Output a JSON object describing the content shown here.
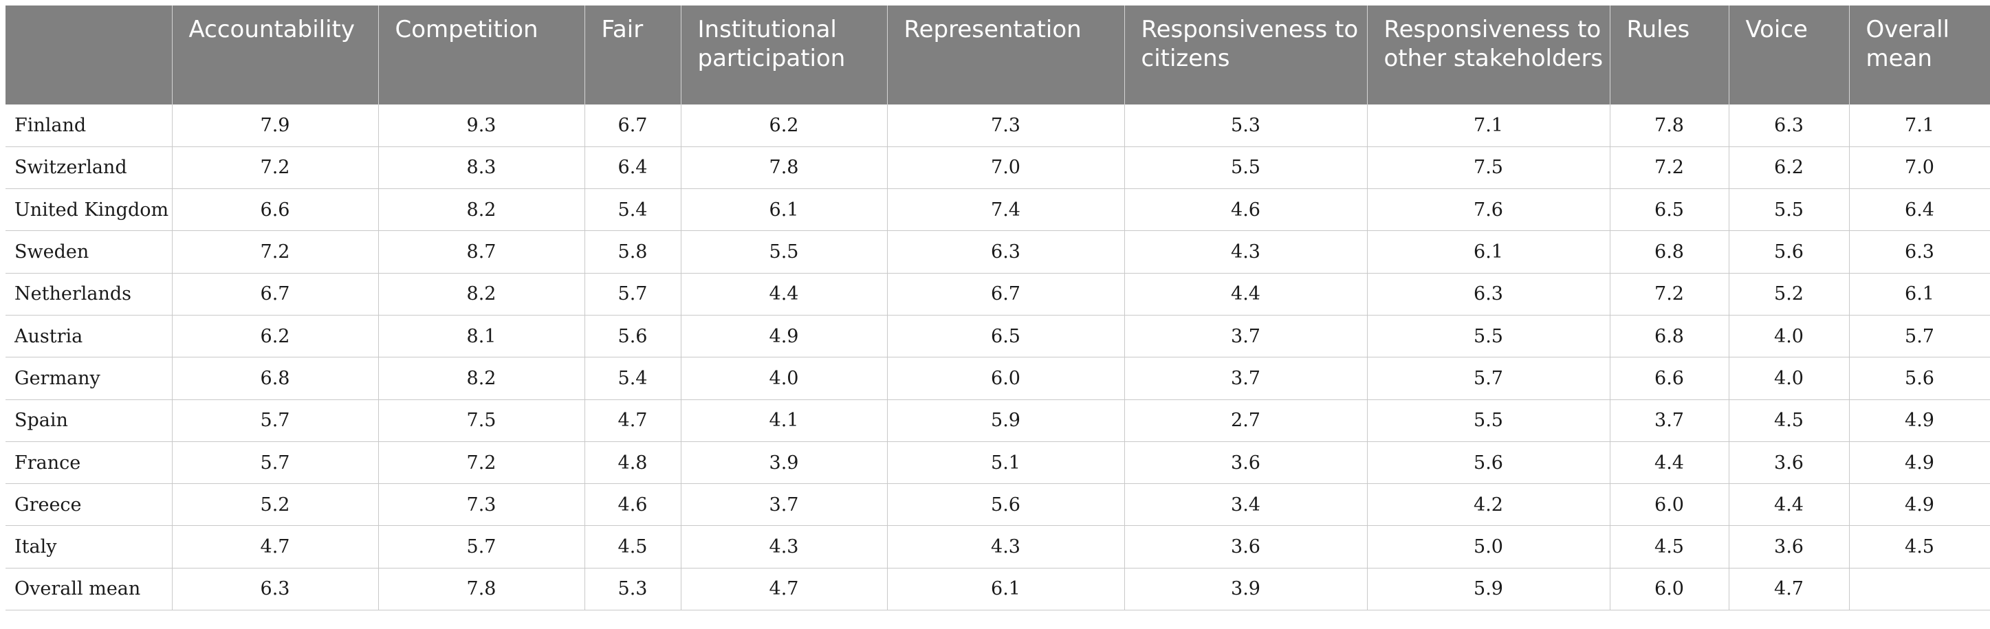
{
  "table": {
    "headers": [
      "",
      "Accountability",
      "Competition",
      "Fair",
      "Institutional participation",
      "Representation",
      "Responsiveness to citizens",
      "Responsiveness to other stakeholders",
      "Rules",
      "Voice",
      "Overall mean"
    ],
    "rows": [
      [
        "Finland",
        "7.9",
        "9.3",
        "6.7",
        "6.2",
        "7.3",
        "5.3",
        "7.1",
        "7.8",
        "6.3",
        "7.1"
      ],
      [
        "Switzerland",
        "7.2",
        "8.3",
        "6.4",
        "7.8",
        "7.0",
        "5.5",
        "7.5",
        "7.2",
        "6.2",
        "7.0"
      ],
      [
        "United Kingdom",
        "6.6",
        "8.2",
        "5.4",
        "6.1",
        "7.4",
        "4.6",
        "7.6",
        "6.5",
        "5.5",
        "6.4"
      ],
      [
        "Sweden",
        "7.2",
        "8.7",
        "5.8",
        "5.5",
        "6.3",
        "4.3",
        "6.1",
        "6.8",
        "5.6",
        "6.3"
      ],
      [
        "Netherlands",
        "6.7",
        "8.2",
        "5.7",
        "4.4",
        "6.7",
        "4.4",
        "6.3",
        "7.2",
        "5.2",
        "6.1"
      ],
      [
        "Austria",
        "6.2",
        "8.1",
        "5.6",
        "4.9",
        "6.5",
        "3.7",
        "5.5",
        "6.8",
        "4.0",
        "5.7"
      ],
      [
        "Germany",
        "6.8",
        "8.2",
        "5.4",
        "4.0",
        "6.0",
        "3.7",
        "5.7",
        "6.6",
        "4.0",
        "5.6"
      ],
      [
        "Spain",
        "5.7",
        "7.5",
        "4.7",
        "4.1",
        "5.9",
        "2.7",
        "5.5",
        "3.7",
        "4.5",
        "4.9"
      ],
      [
        "France",
        "5.7",
        "7.2",
        "4.8",
        "3.9",
        "5.1",
        "3.6",
        "5.6",
        "4.4",
        "3.6",
        "4.9"
      ],
      [
        "Greece",
        "5.2",
        "7.3",
        "4.6",
        "3.7",
        "5.6",
        "3.4",
        "4.2",
        "6.0",
        "4.4",
        "4.9"
      ],
      [
        "Italy",
        "4.7",
        "5.7",
        "4.5",
        "4.3",
        "4.3",
        "3.6",
        "5.0",
        "4.5",
        "3.6",
        "4.5"
      ],
      [
        "Overall mean",
        "6.3",
        "7.8",
        "5.3",
        "4.7",
        "6.1",
        "3.9",
        "5.9",
        "6.0",
        "4.7",
        ""
      ]
    ]
  }
}
